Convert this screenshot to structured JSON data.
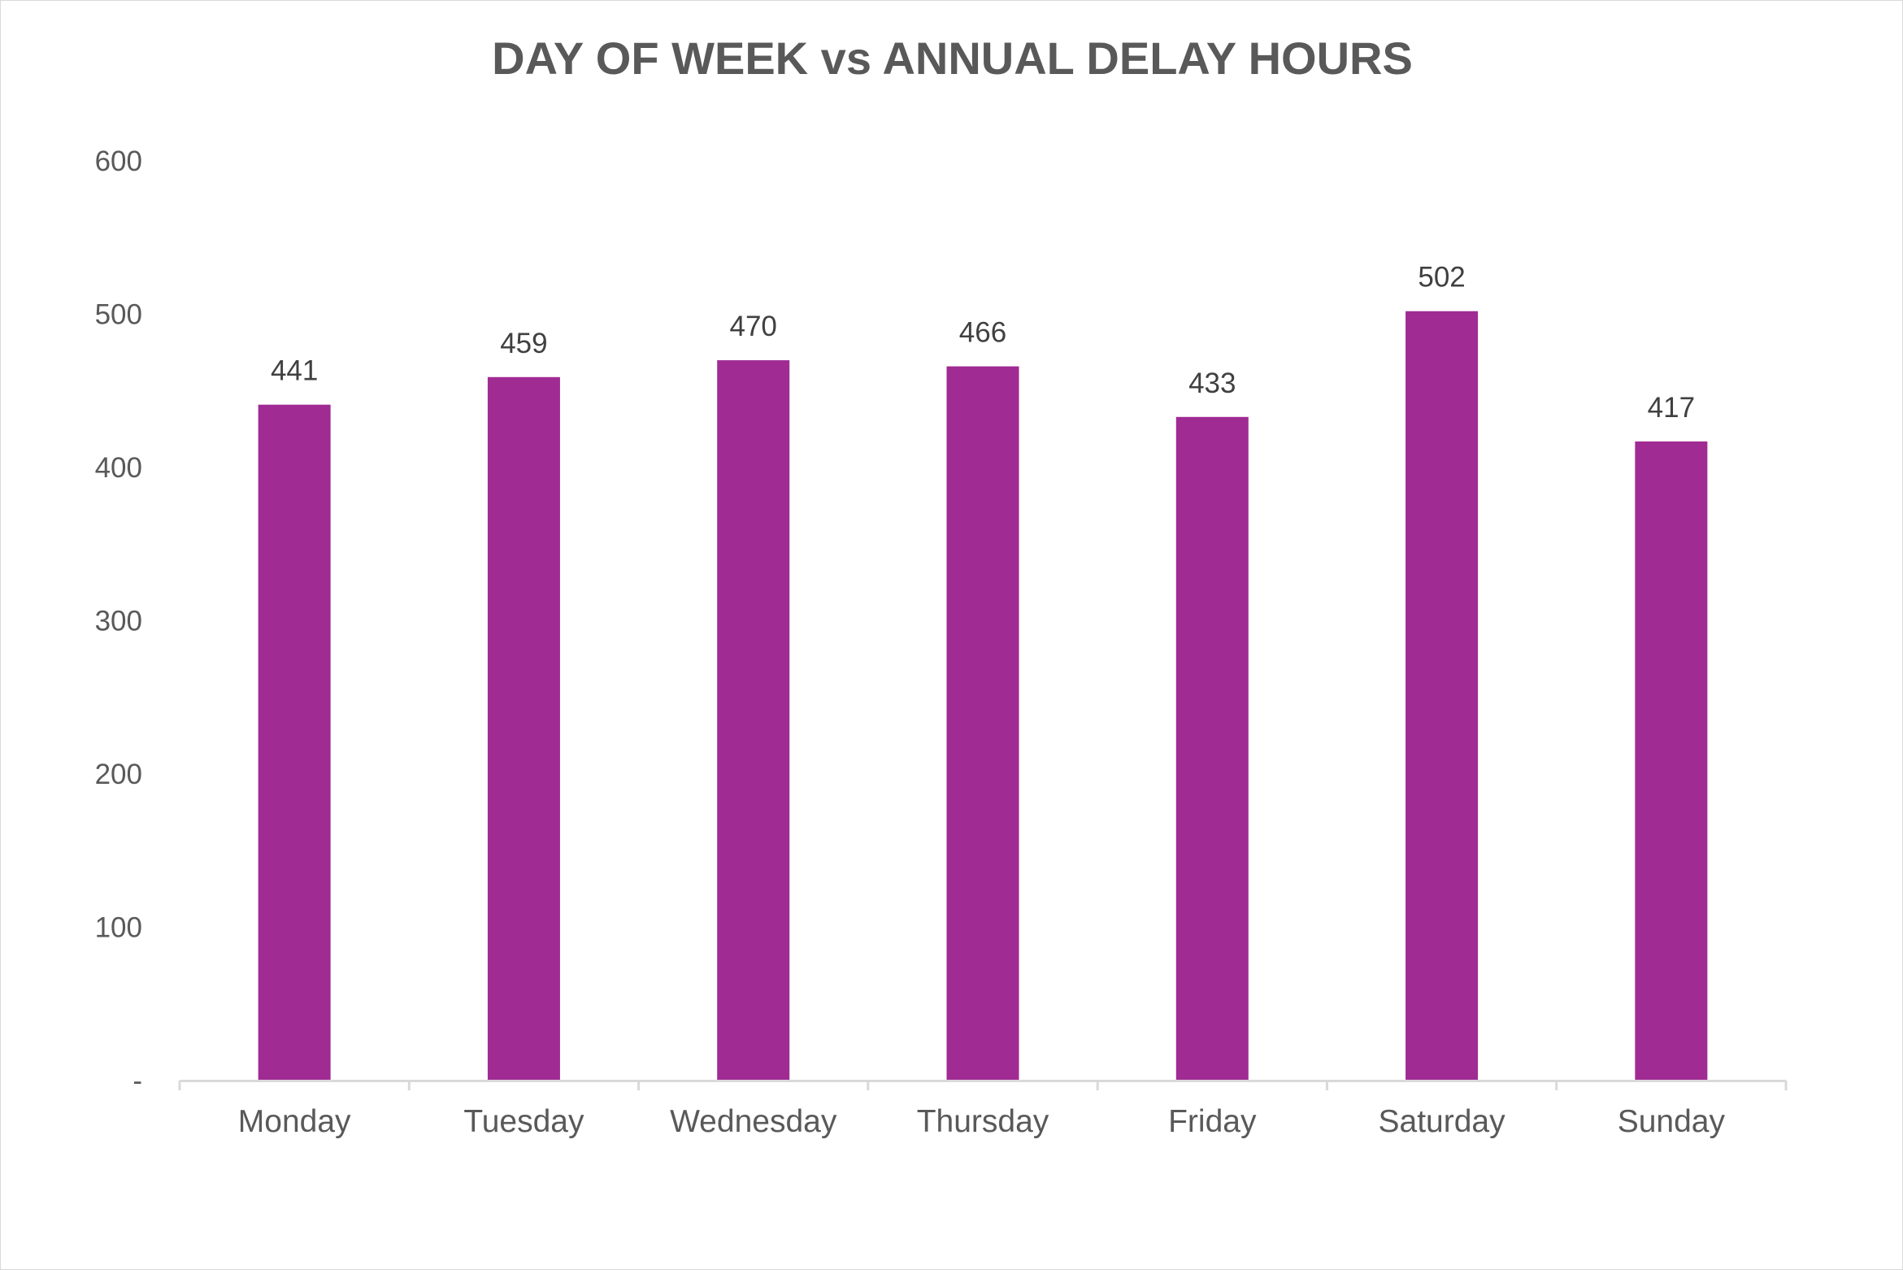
{
  "chart_data": {
    "type": "bar",
    "title": "DAY OF WEEK vs ANNUAL DELAY HOURS",
    "categories": [
      "Monday",
      "Tuesday",
      "Wednesday",
      "Thursday",
      "Friday",
      "Saturday",
      "Sunday"
    ],
    "values": [
      441,
      459,
      470,
      466,
      433,
      502,
      417
    ],
    "data_labels": [
      "441",
      "459",
      "470",
      "466",
      "433",
      "502",
      "417"
    ],
    "ylim": [
      0,
      600
    ],
    "yticks": [
      0,
      100,
      200,
      300,
      400,
      500,
      600
    ],
    "ytick_labels": [
      "-",
      "100",
      "200",
      "300",
      "400",
      "500",
      "600"
    ],
    "xlabel": "",
    "ylabel": "",
    "grid": false,
    "legend": "none",
    "bar_color": "#A02B93"
  }
}
